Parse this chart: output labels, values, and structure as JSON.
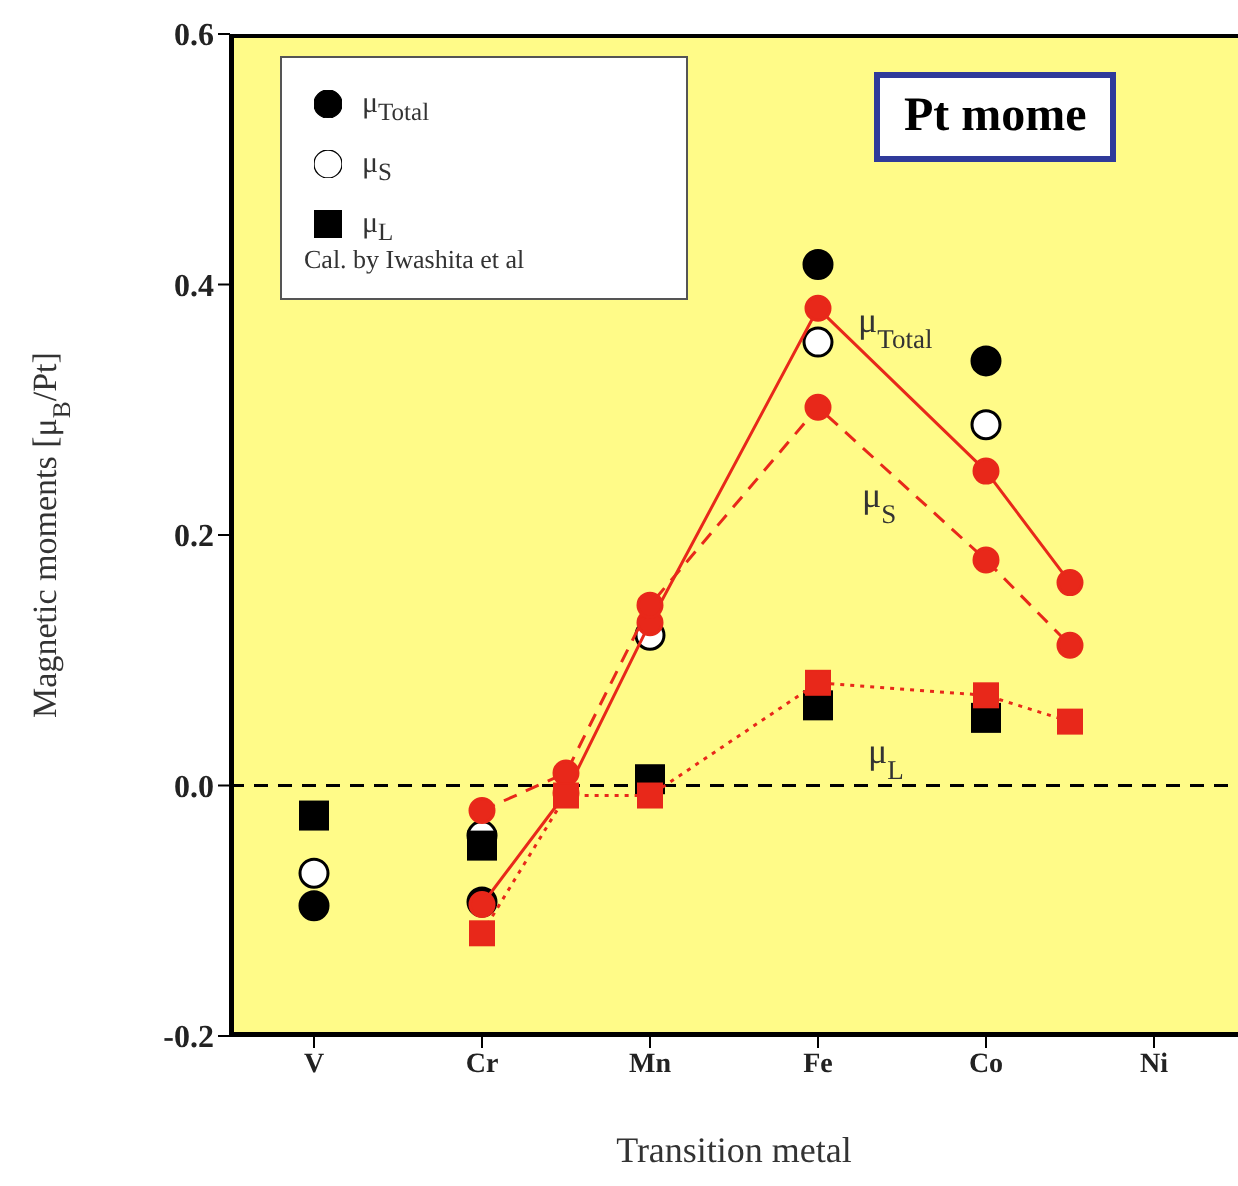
{
  "chart_data": {
    "type": "scatter",
    "xlabel": "Transition metal",
    "ylabel": "Magnetic moments [μ$_{B}$/Pt]",
    "legend_title": "Cal. by Iwashita et al",
    "legend": "top left",
    "categories": [
      "V",
      null,
      "Cr",
      null,
      "Mn",
      null,
      "Fe",
      null,
      "Co",
      null,
      "Ni"
    ],
    "ylim": [
      -0.2,
      0.6
    ],
    "yticks": [
      {
        "value": -0.2,
        "label": "-0.2"
      },
      {
        "value": 0,
        "label": "0.0"
      },
      {
        "value": 0.2,
        "label": "0.2"
      },
      {
        "value": 0.4,
        "label": "0.4"
      },
      {
        "value": 0.6,
        "label": "0.6"
      }
    ],
    "ref_lines": [
      {
        "axis": "y",
        "value": 0,
        "color": "#000000",
        "line_style": "dashed"
      }
    ],
    "annotations": [
      "Pt mome"
    ],
    "series": [
      {
        "name": "μ$_{Total}$",
        "marker": "circle",
        "color": "#000000",
        "values": [
          -0.096,
          null,
          -0.093,
          null,
          null,
          null,
          0.416,
          null,
          0.339,
          null,
          null
        ]
      },
      {
        "name": "μ$_{S}$",
        "marker": "circle",
        "color": "#ffffff",
        "values": [
          -0.07,
          null,
          -0.04,
          null,
          0.12,
          null,
          0.354,
          null,
          0.288,
          null,
          null
        ]
      },
      {
        "name": "μ$_{L}$",
        "marker": "square",
        "color": "#000000",
        "values": [
          -0.024,
          null,
          -0.048,
          null,
          0.005,
          null,
          0.064,
          null,
          0.054,
          null,
          null
        ]
      },
      {
        "name": "μ$_{Total}$",
        "type": "line",
        "marker": "circle",
        "line_style": "solid",
        "color": "#e8281a",
        "values": [
          null,
          null,
          -0.095,
          -0.006,
          0.13,
          null,
          0.381,
          null,
          0.251,
          0.162,
          null
        ]
      },
      {
        "name": "μ$_{S}$",
        "type": "line",
        "marker": "circle",
        "line_style": "dashed",
        "color": "#e8281a",
        "values": [
          null,
          null,
          -0.02,
          0.01,
          0.144,
          null,
          0.302,
          null,
          0.18,
          0.112,
          null
        ]
      },
      {
        "name": "μ$_{L}$",
        "type": "line",
        "marker": "square",
        "line_style": "dotted",
        "color": "#e8281a",
        "values": [
          null,
          null,
          -0.118,
          -0.008,
          -0.008,
          null,
          0.082,
          null,
          0.072,
          0.051,
          null
        ]
      }
    ]
  }
}
